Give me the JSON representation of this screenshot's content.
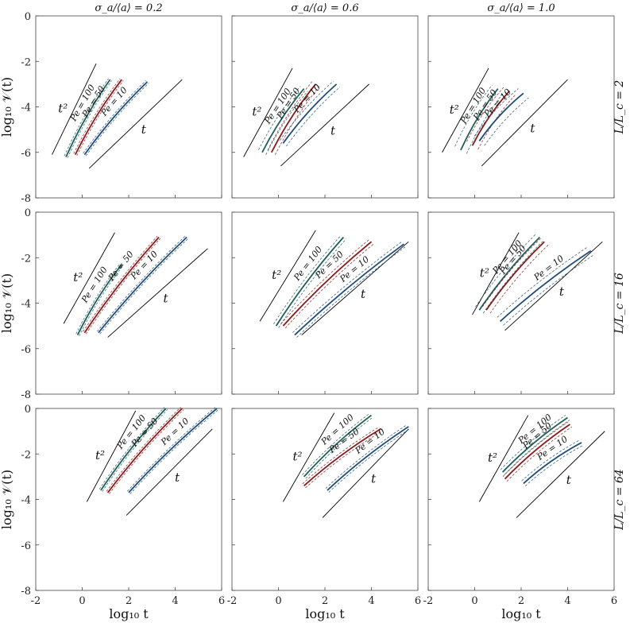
{
  "chart_data": {
    "type": "line",
    "layout": "3x3 grid of log-log panels",
    "column_titles": [
      "σ_a/⟨a⟩ = 0.2",
      "σ_a/⟨a⟩ = 0.6",
      "σ_a/⟨a⟩ = 1.0"
    ],
    "row_titles": [
      "L/L_c = 2",
      "L/L_c = 16",
      "L/L_c = 64"
    ],
    "xlabel": "log₁₀ t",
    "ylabel": "log₁₀ 𝒱(t)",
    "xlim": [
      -2,
      6
    ],
    "ylim": [
      -8,
      0
    ],
    "xticks": [
      "-2",
      "0",
      "2",
      "4",
      "6"
    ],
    "yticks": [
      "0",
      "-2",
      "-4",
      "-6",
      "-8"
    ],
    "colors": {
      "Pe = 100": "#1f5f5b",
      "Pe = 50": "#8b1a1a",
      "Pe = 10": "#1f4e79",
      "reference": "#000000"
    },
    "series_names": [
      "Pe = 100",
      "Pe = 50",
      "Pe = 10"
    ],
    "reference_labels": [
      "t²",
      "t"
    ],
    "panels": [
      {
        "row": 0,
        "col": 0,
        "series": [
          {
            "name": "Pe = 100",
            "label": "Pe = 100",
            "x": [
              -0.7,
              1.2
            ],
            "y": [
              -6.2,
              -2.8
            ],
            "band": 0.15
          },
          {
            "name": "Pe = 50",
            "label": "Pe = 50",
            "x": [
              -0.3,
              1.7
            ],
            "y": [
              -6.1,
              -2.8
            ],
            "band": 0.15
          },
          {
            "name": "Pe = 10",
            "label": "Pe = 10",
            "x": [
              0.1,
              2.8
            ],
            "y": [
              -6.1,
              -2.9
            ],
            "band": 0.15
          }
        ],
        "references": [
          {
            "label": "t²",
            "x": [
              -1.3,
              0.6
            ],
            "y": [
              -6.1,
              -2.1
            ]
          },
          {
            "label": "t",
            "x": [
              0.3,
              4.3
            ],
            "y": [
              -6.7,
              -2.8
            ]
          }
        ]
      },
      {
        "row": 0,
        "col": 1,
        "series": [
          {
            "name": "Pe = 100",
            "label": "Pe = 100",
            "x": [
              -0.7,
              1.1
            ],
            "y": [
              -6.0,
              -3.2
            ],
            "band": 0.35
          },
          {
            "name": "Pe = 50",
            "label": "Pe = 50",
            "x": [
              -0.3,
              1.6
            ],
            "y": [
              -6.0,
              -3.0
            ],
            "band": 0.35
          },
          {
            "name": "Pe = 10",
            "label": "Pe = 10",
            "x": [
              0.2,
              2.5
            ],
            "y": [
              -5.6,
              -3.0
            ],
            "band": 0.35
          }
        ],
        "references": [
          {
            "label": "t²",
            "x": [
              -1.5,
              0.6
            ],
            "y": [
              -6.2,
              -2.3
            ]
          },
          {
            "label": "t",
            "x": [
              0.1,
              3.9
            ],
            "y": [
              -6.6,
              -3.0
            ]
          }
        ]
      },
      {
        "row": 0,
        "col": 2,
        "series": [
          {
            "name": "Pe = 100",
            "label": "Pe = 100",
            "x": [
              -0.6,
              1.0
            ],
            "y": [
              -5.9,
              -3.2
            ],
            "band": 0.55
          },
          {
            "name": "Pe = 50",
            "label": "Pe = 50",
            "x": [
              -0.1,
              1.5
            ],
            "y": [
              -5.7,
              -3.3
            ],
            "band": 0.55
          },
          {
            "name": "Pe = 10",
            "label": "Pe = 10",
            "x": [
              0.2,
              2.1
            ],
            "y": [
              -5.5,
              -3.4
            ],
            "band": 0.55
          }
        ],
        "references": [
          {
            "label": "t²",
            "x": [
              -1.4,
              0.6
            ],
            "y": [
              -6.0,
              -2.3
            ]
          },
          {
            "label": "t",
            "x": [
              0.3,
              4.0
            ],
            "y": [
              -6.6,
              -2.8
            ]
          }
        ]
      },
      {
        "row": 1,
        "col": 0,
        "series": [
          {
            "name": "Pe = 100",
            "label": "Pe = 100",
            "x": [
              -0.2,
              1.7
            ],
            "y": [
              -5.4,
              -2.3
            ],
            "band": 0.15
          },
          {
            "name": "Pe = 50",
            "label": "Pe = 50",
            "x": [
              0.1,
              3.3
            ],
            "y": [
              -5.3,
              -1.1
            ],
            "band": 0.15
          },
          {
            "name": "Pe = 10",
            "label": "Pe = 10",
            "x": [
              0.7,
              4.5
            ],
            "y": [
              -5.3,
              -1.1
            ],
            "band": 0.15
          }
        ],
        "references": [
          {
            "label": "t²",
            "x": [
              -0.8,
              1.4
            ],
            "y": [
              -4.9,
              -0.9
            ]
          },
          {
            "label": "t",
            "x": [
              1.1,
              5.4
            ],
            "y": [
              -5.5,
              -1.6
            ]
          }
        ]
      },
      {
        "row": 1,
        "col": 1,
        "series": [
          {
            "name": "Pe = 100",
            "label": "Pe = 100",
            "x": [
              -0.1,
              2.8
            ],
            "y": [
              -5.0,
              -1.1
            ],
            "band": 0.25
          },
          {
            "name": "Pe = 50",
            "label": "Pe = 50",
            "x": [
              0.2,
              4.0
            ],
            "y": [
              -5.0,
              -1.3
            ],
            "band": 0.25
          },
          {
            "name": "Pe = 10",
            "label": "Pe = 10",
            "x": [
              0.7,
              5.4
            ],
            "y": [
              -5.4,
              -1.4
            ],
            "band": 0.25
          }
        ],
        "references": [
          {
            "label": "t²",
            "x": [
              -0.8,
              1.6
            ],
            "y": [
              -4.8,
              -0.8
            ]
          },
          {
            "label": "t",
            "x": [
              1.0,
              5.6
            ],
            "y": [
              -5.4,
              -1.3
            ]
          }
        ]
      },
      {
        "row": 1,
        "col": 2,
        "series": [
          {
            "name": "Pe = 100",
            "label": "Pe = 100",
            "x": [
              0.2,
              2.8
            ],
            "y": [
              -4.3,
              -1.1
            ],
            "band": 0.4
          },
          {
            "name": "Pe = 50",
            "label": "Pe = 50",
            "x": [
              0.5,
              3.0
            ],
            "y": [
              -4.3,
              -1.3
            ],
            "band": 0.4
          },
          {
            "name": "Pe = 10",
            "label": "Pe = 10",
            "x": [
              1.1,
              5.0
            ],
            "y": [
              -4.8,
              -1.7
            ],
            "band": 0.4
          }
        ],
        "references": [
          {
            "label": "t²",
            "x": [
              -0.1,
              1.9
            ],
            "y": [
              -4.5,
              -0.9
            ]
          },
          {
            "label": "t",
            "x": [
              1.3,
              5.5
            ],
            "y": [
              -5.2,
              -1.3
            ]
          }
        ]
      },
      {
        "row": 2,
        "col": 0,
        "series": [
          {
            "name": "Pe = 100",
            "label": "Pe = 100",
            "x": [
              0.8,
              3.6
            ],
            "y": [
              -3.6,
              0.0
            ],
            "band": 0.15
          },
          {
            "name": "Pe = 50",
            "label": "Pe = 50",
            "x": [
              1.1,
              4.3
            ],
            "y": [
              -3.7,
              0.0
            ],
            "band": 0.15
          },
          {
            "name": "Pe = 10",
            "label": "Pe = 10",
            "x": [
              2.0,
              5.8
            ],
            "y": [
              -3.7,
              0.0
            ],
            "band": 0.15
          }
        ],
        "references": [
          {
            "label": "t²",
            "x": [
              0.2,
              2.3
            ],
            "y": [
              -4.1,
              -0.1
            ]
          },
          {
            "label": "t",
            "x": [
              1.9,
              5.6
            ],
            "y": [
              -4.7,
              -0.9
            ]
          }
        ]
      },
      {
        "row": 2,
        "col": 1,
        "series": [
          {
            "name": "Pe = 100",
            "label": "Pe = 100",
            "x": [
              1.1,
              4.0
            ],
            "y": [
              -3.0,
              -0.3
            ],
            "band": 0.2
          },
          {
            "name": "Pe = 50",
            "label": "Pe = 50",
            "x": [
              1.1,
              4.4
            ],
            "y": [
              -3.4,
              -0.9
            ],
            "band": 0.2
          },
          {
            "name": "Pe = 10",
            "label": "Pe = 10",
            "x": [
              2.1,
              5.6
            ],
            "y": [
              -3.6,
              -0.8
            ],
            "band": 0.2
          }
        ],
        "references": [
          {
            "label": "t²",
            "x": [
              0.2,
              2.4
            ],
            "y": [
              -4.1,
              -0.2
            ]
          },
          {
            "label": "t",
            "x": [
              1.9,
              5.6
            ],
            "y": [
              -4.8,
              -0.9
            ]
          }
        ]
      },
      {
        "row": 2,
        "col": 2,
        "series": [
          {
            "name": "Pe = 100",
            "label": "Pe = 100",
            "x": [
              1.2,
              4.0
            ],
            "y": [
              -2.8,
              -0.4
            ],
            "band": 0.25
          },
          {
            "name": "Pe = 50",
            "label": "Pe = 50",
            "x": [
              1.3,
              4.1
            ],
            "y": [
              -3.1,
              -0.7
            ],
            "band": 0.25
          },
          {
            "name": "Pe = 10",
            "label": "Pe = 10",
            "x": [
              2.1,
              4.6
            ],
            "y": [
              -3.3,
              -1.5
            ],
            "band": 0.25
          }
        ],
        "references": [
          {
            "label": "t²",
            "x": [
              0.2,
              2.3
            ],
            "y": [
              -4.1,
              -0.3
            ]
          },
          {
            "label": "t",
            "x": [
              1.8,
              5.6
            ],
            "y": [
              -4.8,
              -1.0
            ]
          }
        ]
      }
    ]
  }
}
